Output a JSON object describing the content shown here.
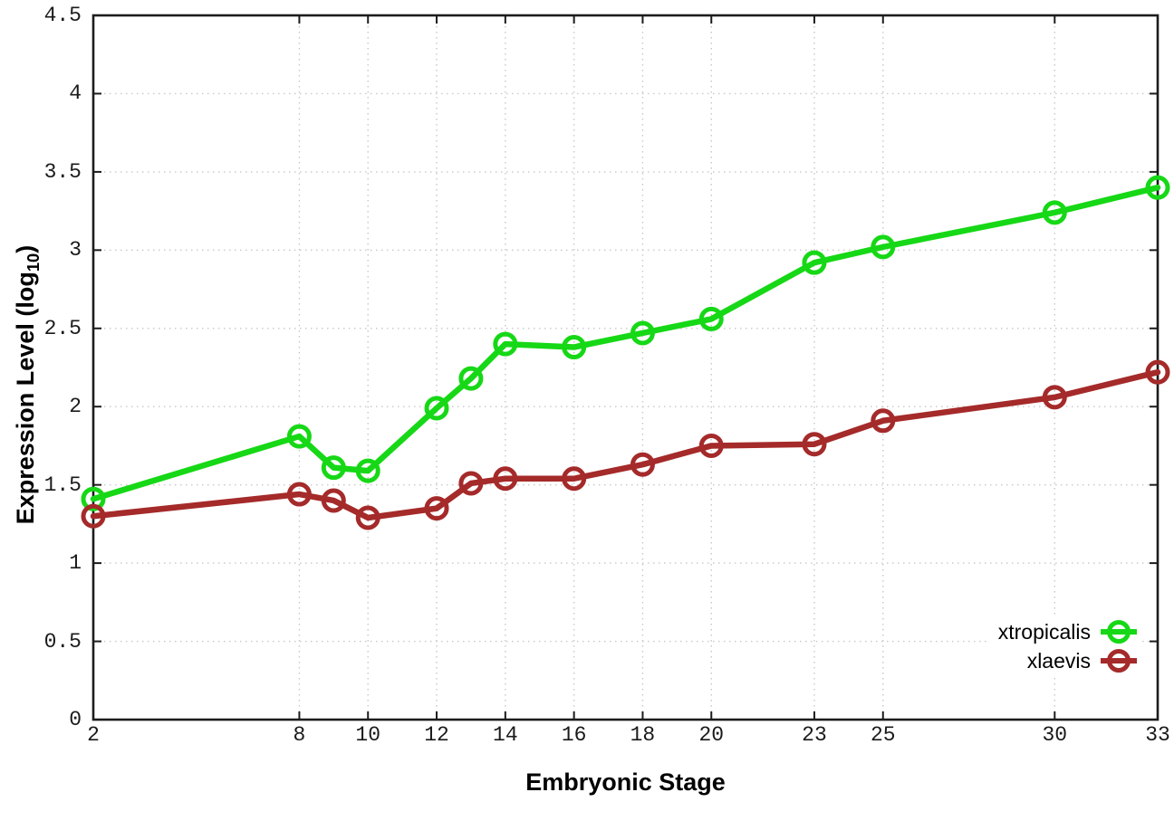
{
  "page": {
    "background": "#ffffff"
  },
  "colors": {
    "grid": "#c8c8c8",
    "border": "#1c1c1c",
    "tick_label": "#1a1a1a",
    "axis_title": "#000000",
    "legend_text": "#000000"
  },
  "chart_data": {
    "type": "line",
    "title": "",
    "xlabel": "Embryonic Stage",
    "ylabel": "Expression Level (log10)",
    "ylabel_display": {
      "prefix": "Expression Level (log",
      "sub": "10",
      "suffix": ")"
    },
    "x": [
      2,
      8,
      9,
      10,
      12,
      13,
      14,
      16,
      18,
      20,
      23,
      25,
      30,
      33
    ],
    "xticks": [
      2,
      8,
      10,
      12,
      14,
      16,
      18,
      20,
      23,
      25,
      30,
      33
    ],
    "yticks": [
      0,
      0.5,
      1,
      1.5,
      2,
      2.5,
      3,
      3.5,
      4,
      4.5
    ],
    "xlim": [
      2,
      33
    ],
    "ylim": [
      0,
      4.5
    ],
    "grid": true,
    "grid_style": "dotted",
    "legend_position": "inside-bottom-right",
    "marker": "open-circle",
    "series": [
      {
        "name": "xtropicalis",
        "color": "#16d816",
        "values": [
          1.41,
          1.81,
          1.61,
          1.59,
          1.99,
          2.18,
          2.4,
          2.38,
          2.47,
          2.56,
          2.92,
          3.02,
          3.24,
          3.4
        ]
      },
      {
        "name": "xlaevis",
        "color": "#a52a2a",
        "values": [
          1.3,
          1.44,
          1.4,
          1.29,
          1.35,
          1.51,
          1.54,
          1.54,
          1.63,
          1.75,
          1.76,
          1.91,
          2.06,
          2.22
        ]
      }
    ]
  }
}
